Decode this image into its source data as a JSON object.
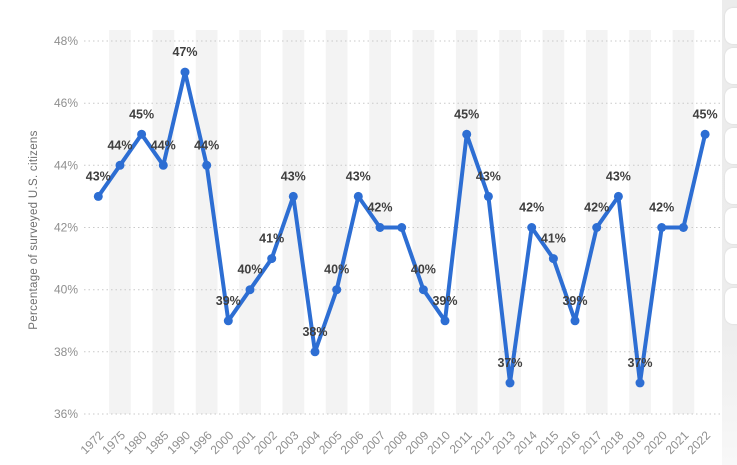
{
  "chart_data": {
    "type": "line",
    "title": "",
    "xlabel": "",
    "ylabel": "Percentage of surveyed U.S. citizens",
    "unit": "%",
    "categories": [
      "1972",
      "1975",
      "1980",
      "1985",
      "1990",
      "1996",
      "2000",
      "2001",
      "2002",
      "2003",
      "2004",
      "2005",
      "2006",
      "2007",
      "2008",
      "2009",
      "2010",
      "2011",
      "2012",
      "2013",
      "2014",
      "2015",
      "2016",
      "2017",
      "2018",
      "2019",
      "2020",
      "2021",
      "2022"
    ],
    "values": [
      43,
      44,
      45,
      44,
      47,
      44,
      39,
      40,
      41,
      43,
      38,
      40,
      43,
      42,
      42,
      40,
      39,
      45,
      43,
      37,
      42,
      41,
      39,
      42,
      43,
      37,
      42,
      42,
      45
    ],
    "ylim": [
      36,
      48
    ],
    "ytick_step": 2,
    "grid": "horizontal-dotted",
    "legend": "none",
    "hidden_label_indices": [
      14,
      27
    ],
    "colors": {
      "line": "#2d6ed3",
      "marker": "#2d6ed3",
      "data_label": "#404040",
      "axis_tick_label": "#8f8f8f",
      "axis_title": "#6e6e6e",
      "gridline": "#c9c9c9",
      "plot_band": "#f3f3f3",
      "background": "#ffffff"
    }
  },
  "side_panel": {
    "button_count": 8
  }
}
